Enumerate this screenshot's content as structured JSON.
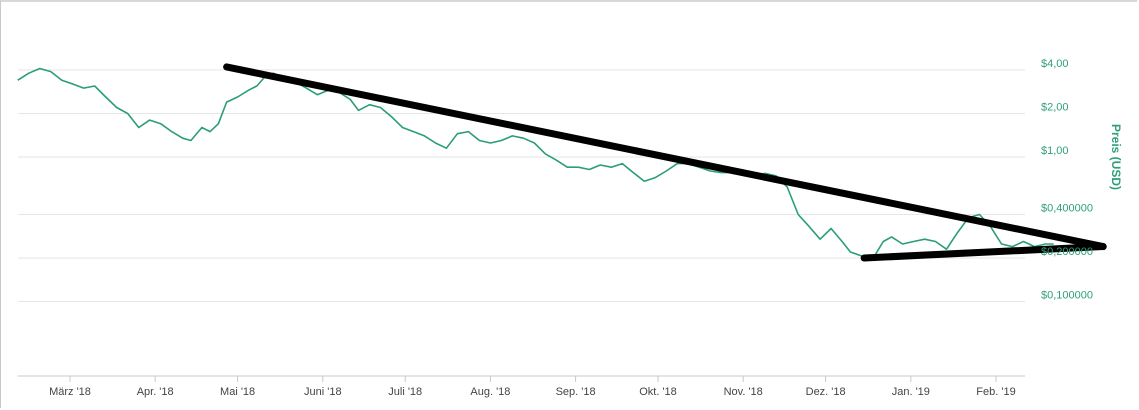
{
  "chart_data": {
    "type": "line",
    "title": "",
    "xlabel": "",
    "ylabel": "Preis (USD)",
    "y_scale": "log",
    "ylim": [
      0.08,
      6.5
    ],
    "xlim": [
      "2018-02-10",
      "2019-02-25"
    ],
    "grid": true,
    "legend": "none",
    "y_ticks": [
      {
        "value": 4,
        "label": "$4,00"
      },
      {
        "value": 2,
        "label": "$2,00"
      },
      {
        "value": 1,
        "label": "$1,00"
      },
      {
        "value": 0.4,
        "label": "$0,400000"
      },
      {
        "value": 0.2,
        "label": "$0,200000"
      },
      {
        "value": 0.1,
        "label": "$0,100000"
      }
    ],
    "x_ticks": [
      {
        "value": "2018-03-01",
        "label": "März '18"
      },
      {
        "value": "2018-04-01",
        "label": "Apr. '18"
      },
      {
        "value": "2018-05-01",
        "label": "Mai '18"
      },
      {
        "value": "2018-06-01",
        "label": "Juni '18"
      },
      {
        "value": "2018-07-01",
        "label": "Juli '18"
      },
      {
        "value": "2018-08-01",
        "label": "Aug. '18"
      },
      {
        "value": "2018-09-01",
        "label": "Sep. '18"
      },
      {
        "value": "2018-10-01",
        "label": "Okt. '18"
      },
      {
        "value": "2018-11-01",
        "label": "Nov. '18"
      },
      {
        "value": "2018-12-01",
        "label": "Dez. '18"
      },
      {
        "value": "2019-01-01",
        "label": "Jan. '19"
      },
      {
        "value": "2019-02-01",
        "label": "Feb. '19"
      }
    ],
    "series": [
      {
        "color": "#2a9d7a",
        "points": [
          [
            "2018-02-10",
            3.4
          ],
          [
            "2018-02-14",
            3.8
          ],
          [
            "2018-02-18",
            4.1
          ],
          [
            "2018-02-22",
            3.9
          ],
          [
            "2018-02-26",
            3.4
          ],
          [
            "2018-03-02",
            3.2
          ],
          [
            "2018-03-06",
            3.0
          ],
          [
            "2018-03-10",
            3.1
          ],
          [
            "2018-03-14",
            2.6
          ],
          [
            "2018-03-18",
            2.2
          ],
          [
            "2018-03-22",
            2.0
          ],
          [
            "2018-03-26",
            1.6
          ],
          [
            "2018-03-30",
            1.8
          ],
          [
            "2018-04-03",
            1.7
          ],
          [
            "2018-04-07",
            1.5
          ],
          [
            "2018-04-11",
            1.35
          ],
          [
            "2018-04-14",
            1.3
          ],
          [
            "2018-04-18",
            1.6
          ],
          [
            "2018-04-21",
            1.5
          ],
          [
            "2018-04-24",
            1.7
          ],
          [
            "2018-04-27",
            2.4
          ],
          [
            "2018-05-01",
            2.6
          ],
          [
            "2018-05-05",
            2.9
          ],
          [
            "2018-05-08",
            3.1
          ],
          [
            "2018-05-11",
            3.6
          ],
          [
            "2018-05-14",
            3.8
          ],
          [
            "2018-05-18",
            3.5
          ],
          [
            "2018-05-22",
            3.3
          ],
          [
            "2018-05-26",
            3.0
          ],
          [
            "2018-05-30",
            2.7
          ],
          [
            "2018-06-03",
            2.9
          ],
          [
            "2018-06-07",
            2.8
          ],
          [
            "2018-06-11",
            2.5
          ],
          [
            "2018-06-14",
            2.1
          ],
          [
            "2018-06-18",
            2.3
          ],
          [
            "2018-06-22",
            2.2
          ],
          [
            "2018-06-26",
            1.9
          ],
          [
            "2018-06-30",
            1.6
          ],
          [
            "2018-07-04",
            1.5
          ],
          [
            "2018-07-08",
            1.4
          ],
          [
            "2018-07-12",
            1.25
          ],
          [
            "2018-07-16",
            1.15
          ],
          [
            "2018-07-20",
            1.45
          ],
          [
            "2018-07-24",
            1.5
          ],
          [
            "2018-07-28",
            1.3
          ],
          [
            "2018-08-01",
            1.25
          ],
          [
            "2018-08-05",
            1.3
          ],
          [
            "2018-08-09",
            1.4
          ],
          [
            "2018-08-13",
            1.35
          ],
          [
            "2018-08-17",
            1.25
          ],
          [
            "2018-08-21",
            1.05
          ],
          [
            "2018-08-25",
            0.95
          ],
          [
            "2018-08-29",
            0.85
          ],
          [
            "2018-09-02",
            0.85
          ],
          [
            "2018-09-06",
            0.82
          ],
          [
            "2018-09-10",
            0.88
          ],
          [
            "2018-09-14",
            0.85
          ],
          [
            "2018-09-18",
            0.9
          ],
          [
            "2018-09-22",
            0.78
          ],
          [
            "2018-09-26",
            0.68
          ],
          [
            "2018-09-30",
            0.72
          ],
          [
            "2018-10-04",
            0.8
          ],
          [
            "2018-10-08",
            0.9
          ],
          [
            "2018-10-12",
            0.9
          ],
          [
            "2018-10-16",
            0.85
          ],
          [
            "2018-10-20",
            0.8
          ],
          [
            "2018-10-24",
            0.78
          ],
          [
            "2018-10-28",
            0.78
          ],
          [
            "2018-11-01",
            0.76
          ],
          [
            "2018-11-05",
            0.75
          ],
          [
            "2018-11-09",
            0.77
          ],
          [
            "2018-11-13",
            0.74
          ],
          [
            "2018-11-17",
            0.62
          ],
          [
            "2018-11-21",
            0.4
          ],
          [
            "2018-11-25",
            0.33
          ],
          [
            "2018-11-29",
            0.27
          ],
          [
            "2018-12-03",
            0.32
          ],
          [
            "2018-12-07",
            0.26
          ],
          [
            "2018-12-10",
            0.22
          ],
          [
            "2018-12-13",
            0.21
          ],
          [
            "2018-12-16",
            0.2
          ],
          [
            "2018-12-19",
            0.21
          ],
          [
            "2018-12-22",
            0.26
          ],
          [
            "2018-12-25",
            0.28
          ],
          [
            "2018-12-29",
            0.25
          ],
          [
            "2019-01-02",
            0.26
          ],
          [
            "2019-01-06",
            0.27
          ],
          [
            "2019-01-10",
            0.26
          ],
          [
            "2019-01-14",
            0.23
          ],
          [
            "2019-01-18",
            0.3
          ],
          [
            "2019-01-22",
            0.38
          ],
          [
            "2019-01-26",
            0.4
          ],
          [
            "2019-01-30",
            0.33
          ],
          [
            "2019-02-03",
            0.25
          ],
          [
            "2019-02-07",
            0.24
          ],
          [
            "2019-02-11",
            0.26
          ],
          [
            "2019-02-15",
            0.24
          ],
          [
            "2019-02-19",
            0.25
          ],
          [
            "2019-02-22",
            0.25
          ]
        ]
      }
    ],
    "annotations": [
      {
        "type": "trendline",
        "color": "#000000",
        "from": [
          "2018-04-27",
          4.2
        ],
        "to": [
          "2019-03-12",
          0.24
        ]
      },
      {
        "type": "trendline",
        "color": "#000000",
        "from": [
          "2018-12-15",
          0.2
        ],
        "to": [
          "2019-03-12",
          0.24
        ]
      }
    ]
  }
}
